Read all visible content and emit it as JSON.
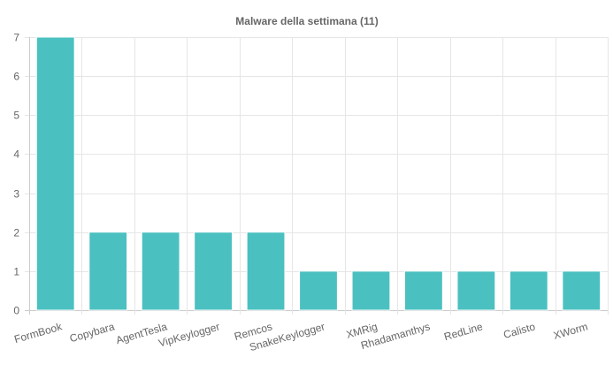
{
  "chart_data": {
    "type": "bar",
    "title": "Malware della settimana (11)",
    "categories": [
      "FormBook",
      "Copybara",
      "AgentTesla",
      "VipKeylogger",
      "Remcos",
      "SnakeKeylogger",
      "XMRig",
      "Rhadamanthys",
      "RedLine",
      "Calisto",
      "XWorm"
    ],
    "values": [
      7,
      2,
      2,
      2,
      2,
      1,
      1,
      1,
      1,
      1,
      1
    ],
    "ylim": [
      0,
      7
    ],
    "yticks": [
      "0",
      "1",
      "2",
      "3",
      "4",
      "5",
      "6",
      "7"
    ],
    "xlabel": "",
    "ylabel": "",
    "grid": true,
    "legend": "none",
    "colors": {
      "bar_fill": "#4bc0c0",
      "bar_border": "#ffffff"
    }
  }
}
